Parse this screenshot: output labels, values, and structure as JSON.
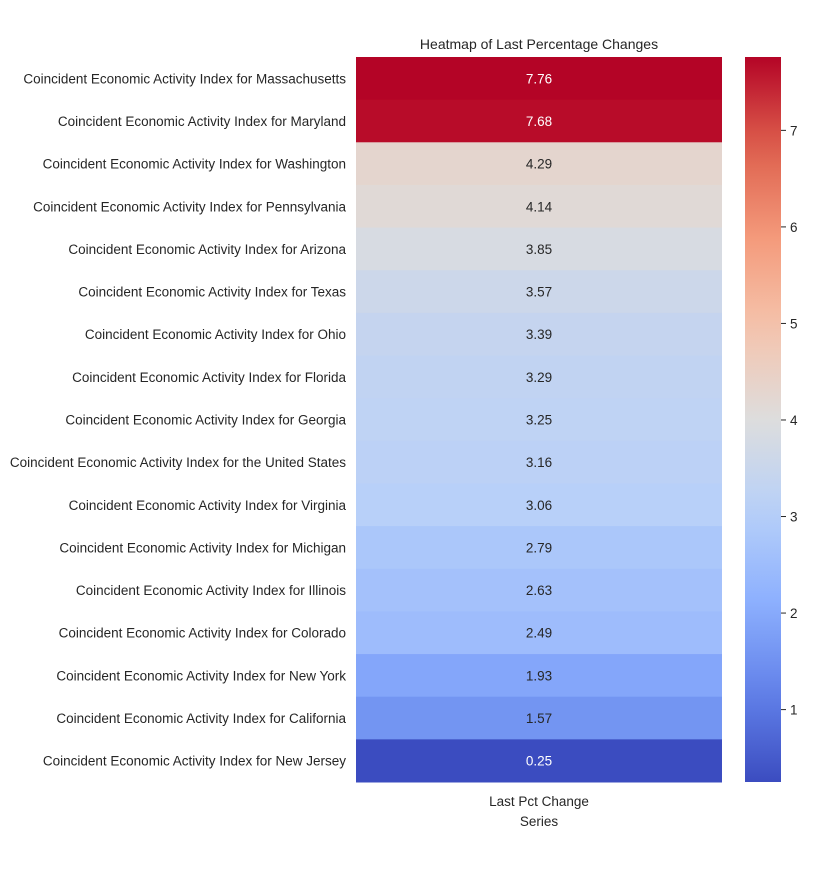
{
  "chart_data": {
    "type": "heatmap",
    "title": "Heatmap of Last Percentage Changes",
    "columns": [
      "Last Pct Change"
    ],
    "xlabel": "Series",
    "colormap": "coolwarm",
    "value_range": [
      0.25,
      7.76
    ],
    "colorbar_ticks": [
      1,
      2,
      3,
      4,
      5,
      6,
      7
    ],
    "rows": [
      {
        "label": "Coincident Economic Activity Index for Massachusetts",
        "value": 7.76
      },
      {
        "label": "Coincident Economic Activity Index for Maryland",
        "value": 7.68
      },
      {
        "label": "Coincident Economic Activity Index for Washington",
        "value": 4.29
      },
      {
        "label": "Coincident Economic Activity Index for Pennsylvania",
        "value": 4.14
      },
      {
        "label": "Coincident Economic Activity Index for Arizona",
        "value": 3.85
      },
      {
        "label": "Coincident Economic Activity Index for Texas",
        "value": 3.57
      },
      {
        "label": "Coincident Economic Activity Index for Ohio",
        "value": 3.39
      },
      {
        "label": "Coincident Economic Activity Index for Florida",
        "value": 3.29
      },
      {
        "label": "Coincident Economic Activity Index for Georgia",
        "value": 3.25
      },
      {
        "label": "Coincident Economic Activity Index for the United States",
        "value": 3.16
      },
      {
        "label": "Coincident Economic Activity Index for Virginia",
        "value": 3.06
      },
      {
        "label": "Coincident Economic Activity Index for Michigan",
        "value": 2.79
      },
      {
        "label": "Coincident Economic Activity Index for Illinois",
        "value": 2.63
      },
      {
        "label": "Coincident Economic Activity Index for Colorado",
        "value": 2.49
      },
      {
        "label": "Coincident Economic Activity Index for New York",
        "value": 1.93
      },
      {
        "label": "Coincident Economic Activity Index for California",
        "value": 1.57
      },
      {
        "label": "Coincident Economic Activity Index for New Jersey",
        "value": 0.25
      }
    ]
  }
}
